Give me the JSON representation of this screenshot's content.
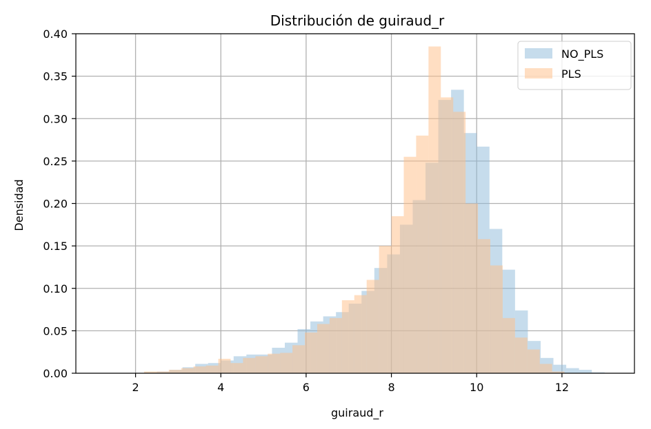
{
  "chart_data": {
    "type": "histogram",
    "title": "Distribución de guiraud_r",
    "xlabel": "guiraud_r",
    "ylabel": "Densidad",
    "xlim": [
      0.6,
      13.7
    ],
    "ylim": [
      0,
      0.4
    ],
    "x_ticks": [
      "2",
      "4",
      "6",
      "8",
      "10",
      "12"
    ],
    "y_ticks": [
      "0.00",
      "0.05",
      "0.10",
      "0.15",
      "0.20",
      "0.25",
      "0.30",
      "0.35",
      "0.40"
    ],
    "grid": true,
    "legend_position": "top-right",
    "overlap_color": "#c6996f",
    "series": [
      {
        "name": "NO_PLS",
        "color": "#8ebad9",
        "alpha": 0.5,
        "bin_width": 0.3,
        "bin_starts": [
          2.2,
          2.5,
          2.8,
          3.1,
          3.4,
          3.7,
          4.0,
          4.3,
          4.6,
          4.9,
          5.2,
          5.5,
          5.8,
          6.1,
          6.4,
          6.7,
          7.0,
          7.3,
          7.6,
          7.9,
          8.2,
          8.5,
          8.8,
          9.1,
          9.4,
          9.7,
          10.0,
          10.3,
          10.6,
          10.9,
          11.2,
          11.5,
          11.8,
          12.1,
          12.4,
          12.7
        ],
        "values": [
          0.001,
          0.002,
          0.004,
          0.007,
          0.011,
          0.012,
          0.015,
          0.02,
          0.022,
          0.022,
          0.03,
          0.036,
          0.052,
          0.061,
          0.067,
          0.072,
          0.082,
          0.097,
          0.124,
          0.14,
          0.175,
          0.204,
          0.248,
          0.322,
          0.334,
          0.283,
          0.267,
          0.17,
          0.122,
          0.074,
          0.038,
          0.018,
          0.01,
          0.006,
          0.004,
          0.001
        ]
      },
      {
        "name": "PLS",
        "color": "#ffbe86",
        "alpha": 0.5,
        "bin_width": 0.29,
        "bin_starts": [
          2.2,
          2.49,
          2.78,
          3.07,
          3.36,
          3.65,
          3.94,
          4.23,
          4.52,
          4.81,
          5.1,
          5.39,
          5.68,
          5.97,
          6.26,
          6.55,
          6.84,
          7.13,
          7.42,
          7.71,
          8.0,
          8.29,
          8.58,
          8.87,
          9.16,
          9.45,
          9.74,
          10.03,
          10.32,
          10.61,
          10.9,
          11.19,
          11.48,
          11.77
        ],
        "values": [
          0.002,
          0.002,
          0.004,
          0.006,
          0.008,
          0.009,
          0.017,
          0.012,
          0.018,
          0.02,
          0.023,
          0.024,
          0.033,
          0.048,
          0.058,
          0.065,
          0.086,
          0.092,
          0.11,
          0.15,
          0.185,
          0.255,
          0.28,
          0.385,
          0.325,
          0.308,
          0.2,
          0.158,
          0.127,
          0.065,
          0.042,
          0.028,
          0.011,
          0.002
        ]
      }
    ]
  }
}
